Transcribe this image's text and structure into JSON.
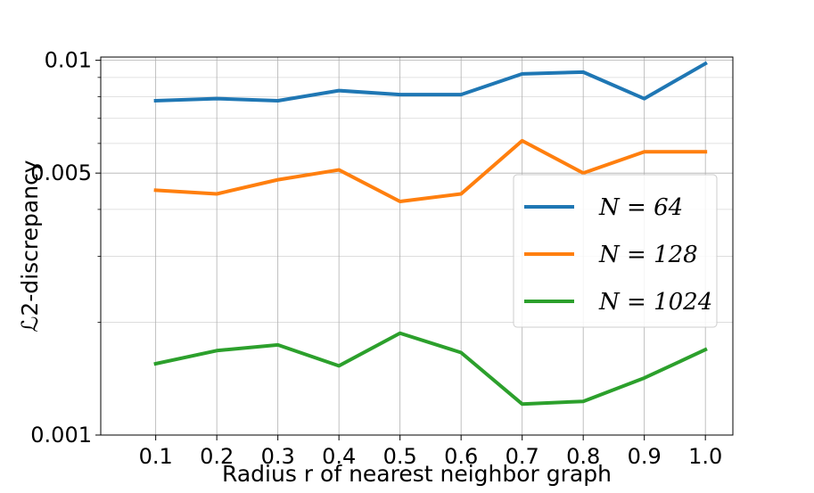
{
  "chart_data": {
    "type": "line",
    "xlabel": "Radius r of nearest neighbor graph",
    "ylabel": "ℒ2-discrepancy",
    "x": [
      0.1,
      0.2,
      0.3,
      0.4,
      0.5,
      0.6,
      0.7,
      0.8,
      0.9,
      1.0
    ],
    "x_tick_labels": [
      "0.1",
      "0.2",
      "0.3",
      "0.4",
      "0.5",
      "0.6",
      "0.7",
      "0.8",
      "0.9",
      "1.0"
    ],
    "xlim": [
      0.01,
      1.045
    ],
    "y_scale": "log",
    "ylim": [
      0.001,
      0.0102
    ],
    "y_ticks": [
      0.001,
      0.005,
      0.01
    ],
    "y_tick_labels": [
      "0.001",
      "0.005",
      "0.01"
    ],
    "y_minor_ticks": [
      0.002,
      0.003,
      0.004,
      0.006,
      0.007,
      0.008,
      0.009
    ],
    "grid": true,
    "legend_position": "center-right",
    "series": [
      {
        "name": "N = 64",
        "color": "#1f77b4",
        "values": [
          0.0078,
          0.0079,
          0.0078,
          0.0083,
          0.0081,
          0.0081,
          0.0092,
          0.0093,
          0.0079,
          0.0098
        ]
      },
      {
        "name": "N = 128",
        "color": "#ff7f0e",
        "values": [
          0.0045,
          0.0044,
          0.0048,
          0.0051,
          0.0042,
          0.0044,
          0.0061,
          0.005,
          0.0057,
          0.0057
        ]
      },
      {
        "name": "N = 1024",
        "color": "#2ca02c",
        "values": [
          0.00155,
          0.00168,
          0.00174,
          0.00153,
          0.00187,
          0.00166,
          0.00121,
          0.00123,
          0.00142,
          0.00169
        ]
      }
    ]
  }
}
